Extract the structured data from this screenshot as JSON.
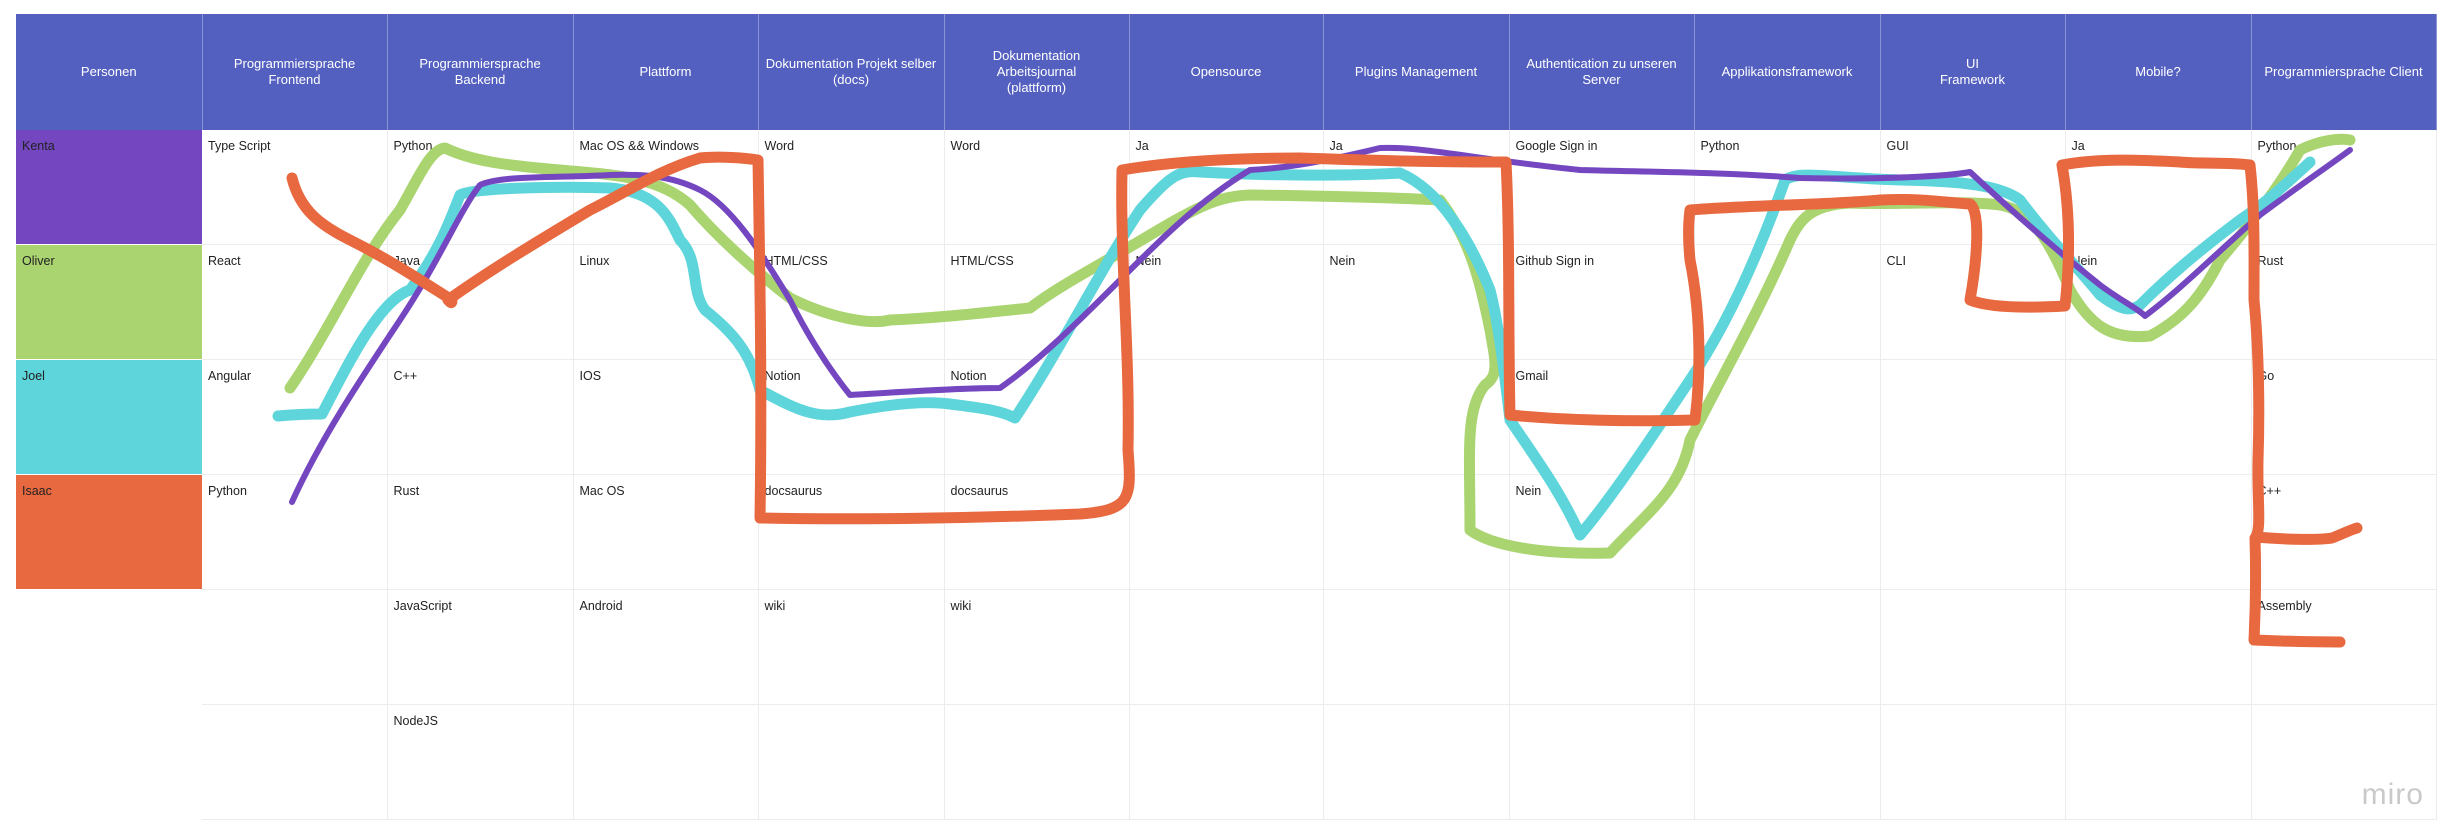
{
  "headers": [
    "Personen",
    "Programmiersprache\nFrontend",
    "Programmiersprache\nBackend",
    "Plattform",
    "Dokumentation Projekt selber\n(docs)",
    "Dokumentation\nArbeitsjournal\n(plattform)",
    "Opensource",
    "Plugins Management",
    "Authentication zu unseren Server",
    "Applikationsframework",
    "UI\nFramework",
    "Mobile?",
    "Programmiersprache Client"
  ],
  "persons": [
    {
      "name": "Kenta",
      "color": "#7447c1"
    },
    {
      "name": "Oliver",
      "color": "#a9d46f"
    },
    {
      "name": "Joel",
      "color": "#5dd5da"
    },
    {
      "name": "Isaac",
      "color": "#e8683f"
    },
    {
      "name": "",
      "color": "#ffffff"
    },
    {
      "name": "",
      "color": "#ffffff"
    }
  ],
  "rows": [
    [
      "Type Script",
      "Python",
      "Mac OS && Windows",
      "Word",
      "Word",
      "Ja",
      "Ja",
      "Google Sign in",
      "Python",
      "GUI",
      "Ja",
      "Python"
    ],
    [
      "React",
      "Java",
      "Linux",
      "HTML/CSS",
      "HTML/CSS",
      "Nein",
      "Nein",
      "Github Sign in",
      "",
      "CLI",
      "Nein",
      "Rust"
    ],
    [
      "Angular",
      "C++",
      "IOS",
      "Notion",
      "Notion",
      "",
      "",
      "Gmail",
      "",
      "",
      "",
      "Go"
    ],
    [
      "Python",
      "Rust",
      "Mac OS",
      "docsaurus",
      "docsaurus",
      "",
      "",
      "Nein",
      "",
      "",
      "",
      "C++"
    ],
    [
      "",
      "JavaScript",
      "Android",
      "wiki",
      "wiki",
      "",
      "",
      "",
      "",
      "",
      "",
      "Assembly"
    ],
    [
      "",
      "NodeJS",
      "",
      "",
      "",
      "",
      "",
      "",
      "",
      "",
      "",
      ""
    ]
  ],
  "header_color": "#5460c0",
  "logo": "miro"
}
